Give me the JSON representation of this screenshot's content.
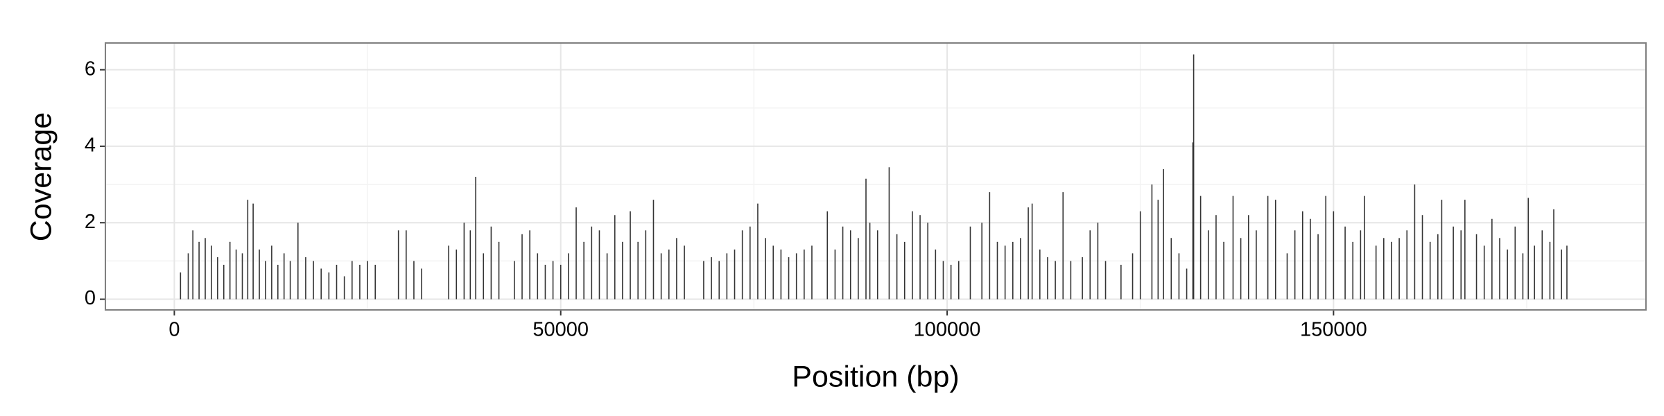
{
  "chart_data": {
    "type": "bar",
    "x_label": "Position (bp)",
    "y_label": "Coverage",
    "color": "#333333",
    "grid": true,
    "xlim": [
      -8920,
      190430
    ],
    "ylim": [
      -0.28,
      6.7
    ],
    "xticks": [
      0,
      50000,
      100000,
      150000
    ],
    "yticks": [
      0,
      2,
      4,
      6
    ],
    "xminor": [
      25000,
      75000,
      125000,
      175000
    ],
    "yminor": [
      1,
      3,
      5
    ],
    "x": [
      800,
      1800,
      2400,
      3200,
      4000,
      4800,
      5600,
      6400,
      7200,
      8000,
      8800,
      9500,
      10200,
      11000,
      11800,
      12600,
      13400,
      14200,
      15000,
      16000,
      17000,
      18000,
      19000,
      20000,
      21000,
      22000,
      23000,
      24000,
      25000,
      26000,
      29000,
      30000,
      31000,
      32000,
      35500,
      36500,
      37500,
      38300,
      39000,
      40000,
      41000,
      42000,
      44000,
      45000,
      46000,
      47000,
      48000,
      49000,
      50000,
      51000,
      52000,
      53000,
      54000,
      55000,
      56000,
      57000,
      58000,
      59000,
      60000,
      61000,
      62000,
      63000,
      64000,
      65000,
      66000,
      68500,
      69500,
      70500,
      71500,
      72500,
      73500,
      74500,
      75500,
      76500,
      77500,
      78500,
      79500,
      80500,
      81500,
      82500,
      84500,
      85500,
      86500,
      87500,
      88500,
      89500,
      90000,
      91000,
      92500,
      93500,
      94500,
      95500,
      96500,
      97500,
      98500,
      99500,
      100500,
      101500,
      103000,
      104500,
      105500,
      106500,
      107500,
      108500,
      109500,
      110500,
      111000,
      112000,
      113000,
      114000,
      115000,
      116000,
      117500,
      118500,
      119500,
      120500,
      122500,
      124000,
      125000,
      126500,
      127300,
      128000,
      129000,
      130000,
      131000,
      131800,
      131900,
      132800,
      133800,
      134800,
      135800,
      137000,
      138000,
      139000,
      140000,
      141500,
      142500,
      144000,
      145000,
      146000,
      147000,
      148000,
      149000,
      150000,
      151500,
      152500,
      153500,
      154000,
      155500,
      156500,
      157500,
      158500,
      159500,
      160500,
      161500,
      162500,
      163500,
      164000,
      165500,
      166500,
      167000,
      168500,
      169500,
      170500,
      171500,
      172500,
      173500,
      174500,
      175200,
      176000,
      177000,
      178000,
      178500,
      179500,
      180200
    ],
    "values": [
      0.7,
      1.2,
      1.8,
      1.5,
      1.6,
      1.4,
      1.1,
      0.9,
      1.5,
      1.3,
      1.2,
      2.6,
      2.5,
      1.3,
      1.0,
      1.4,
      0.9,
      1.2,
      1.0,
      2.0,
      1.1,
      1.0,
      0.8,
      0.7,
      0.9,
      0.6,
      1.0,
      0.9,
      1.0,
      0.9,
      1.8,
      1.8,
      1.0,
      0.8,
      1.4,
      1.3,
      2.0,
      1.8,
      3.2,
      1.2,
      1.9,
      1.5,
      1.0,
      1.7,
      1.8,
      1.2,
      0.9,
      1.0,
      0.9,
      1.2,
      2.4,
      1.5,
      1.9,
      1.8,
      1.2,
      2.2,
      1.5,
      2.3,
      1.5,
      1.8,
      2.6,
      1.2,
      1.3,
      1.6,
      1.4,
      1.0,
      1.1,
      1.0,
      1.2,
      1.3,
      1.8,
      1.9,
      2.5,
      1.6,
      1.4,
      1.3,
      1.1,
      1.2,
      1.3,
      1.4,
      2.3,
      1.3,
      1.9,
      1.8,
      1.6,
      3.15,
      2.0,
      1.8,
      3.45,
      1.7,
      1.5,
      2.3,
      2.2,
      2.0,
      1.3,
      1.0,
      0.9,
      1.0,
      1.9,
      2.0,
      2.8,
      1.5,
      1.4,
      1.5,
      1.6,
      2.4,
      2.5,
      1.3,
      1.1,
      1.0,
      2.8,
      1.0,
      1.1,
      1.8,
      2.0,
      1.0,
      0.9,
      1.2,
      2.3,
      3.0,
      2.6,
      3.4,
      1.6,
      1.2,
      0.8,
      4.1,
      6.4,
      2.7,
      1.8,
      2.2,
      1.5,
      2.7,
      1.6,
      2.2,
      1.8,
      2.7,
      2.6,
      1.2,
      1.8,
      2.3,
      2.1,
      1.7,
      2.7,
      2.3,
      1.9,
      1.5,
      1.8,
      2.7,
      1.4,
      1.6,
      1.5,
      1.6,
      1.8,
      3.0,
      2.2,
      1.5,
      1.7,
      2.6,
      1.9,
      1.8,
      2.6,
      1.7,
      1.4,
      2.1,
      1.6,
      1.3,
      1.9,
      1.2,
      2.65,
      1.4,
      1.8,
      1.5,
      2.35,
      1.3,
      1.4
    ]
  }
}
